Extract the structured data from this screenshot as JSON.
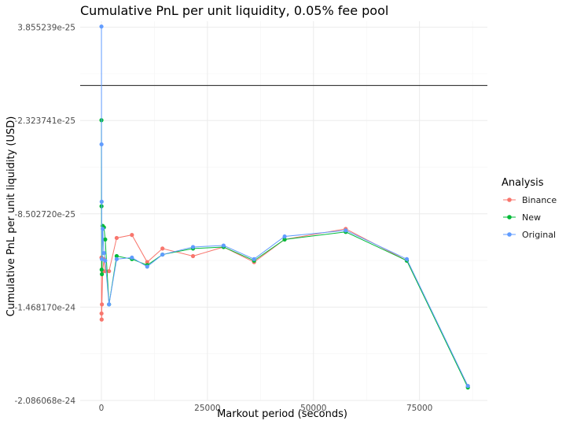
{
  "chart_data": {
    "type": "line",
    "title": "Cumulative PnL per unit liquidity, 0.05% fee pool",
    "xlabel": "Markout period (seconds)",
    "ylabel": "Cumulative PnL per unit liquidity (USD)",
    "xlim": [
      -5000,
      91000
    ],
    "ylim": [
      -2.086068e-24,
      4.25e-25
    ],
    "x_ticks": [
      0,
      25000,
      50000,
      75000
    ],
    "x_tick_labels": [
      "0",
      "25000",
      "50000",
      "75000"
    ],
    "y_ticks": [
      3.855239e-25,
      -2.323741e-25,
      -8.50272e-25,
      -1.46817e-24,
      -2.086068e-24
    ],
    "y_tick_labels": [
      "3.855239e-25",
      "-2.323741e-25",
      "-8.502720e-25",
      "-1.468170e-24",
      "-2.086068e-24"
    ],
    "hline": 0,
    "grid": true,
    "legend_title": "Analysis",
    "legend_position": "right",
    "series": [
      {
        "name": "Binance",
        "color": "#F8766D",
        "x": [
          12,
          30,
          60,
          120,
          300,
          600,
          900,
          1800,
          3600,
          7200,
          10800,
          14400,
          21600,
          28800,
          36000,
          43200,
          57600,
          72000,
          86400
        ],
        "y": [
          -1.14e-24,
          -1.51e-24,
          -1.55e-24,
          -1.45e-24,
          -1.23e-24,
          -1.15e-24,
          -1.23e-24,
          -1.23e-24,
          -1.01e-24,
          -9.9e-25,
          -1.17e-24,
          -1.08e-24,
          -1.13e-24,
          -1.07e-24,
          -1.17e-24,
          -1.02e-24,
          -9.5e-25,
          -1.16e-24,
          -1.99e-24
        ]
      },
      {
        "name": "New",
        "color": "#00BA38",
        "x": [
          12,
          30,
          60,
          120,
          300,
          600,
          900,
          1800,
          3600,
          7200,
          10800,
          14400,
          21600,
          28800,
          36000,
          43200,
          57600,
          72000,
          86400
        ],
        "y": [
          -2.3e-25,
          -8e-25,
          -1.22e-24,
          -1.25e-24,
          -9.3e-25,
          -9.4e-25,
          -1.02e-24,
          -1.45e-24,
          -1.13e-24,
          -1.15e-24,
          -1.19e-24,
          -1.12e-24,
          -1.08e-24,
          -1.07e-24,
          -1.16e-24,
          -1.02e-24,
          -9.7e-25,
          -1.16e-24,
          -2e-24
        ]
      },
      {
        "name": "Original",
        "color": "#619CFF",
        "x": [
          12,
          30,
          60,
          120,
          300,
          600,
          900,
          1800,
          3600,
          7200,
          10800,
          14400,
          21600,
          28800,
          36000,
          43200,
          57600,
          72000,
          86400
        ],
        "y": [
          3.9e-25,
          -3.9e-25,
          -7.7e-25,
          -1.15e-24,
          -9.5e-25,
          -1.11e-24,
          -1.16e-24,
          -1.45e-24,
          -1.15e-24,
          -1.14e-24,
          -1.2e-24,
          -1.12e-24,
          -1.07e-24,
          -1.06e-24,
          -1.15e-24,
          -1e-24,
          -9.6e-25,
          -1.15e-24,
          -1.99e-24
        ]
      }
    ]
  }
}
